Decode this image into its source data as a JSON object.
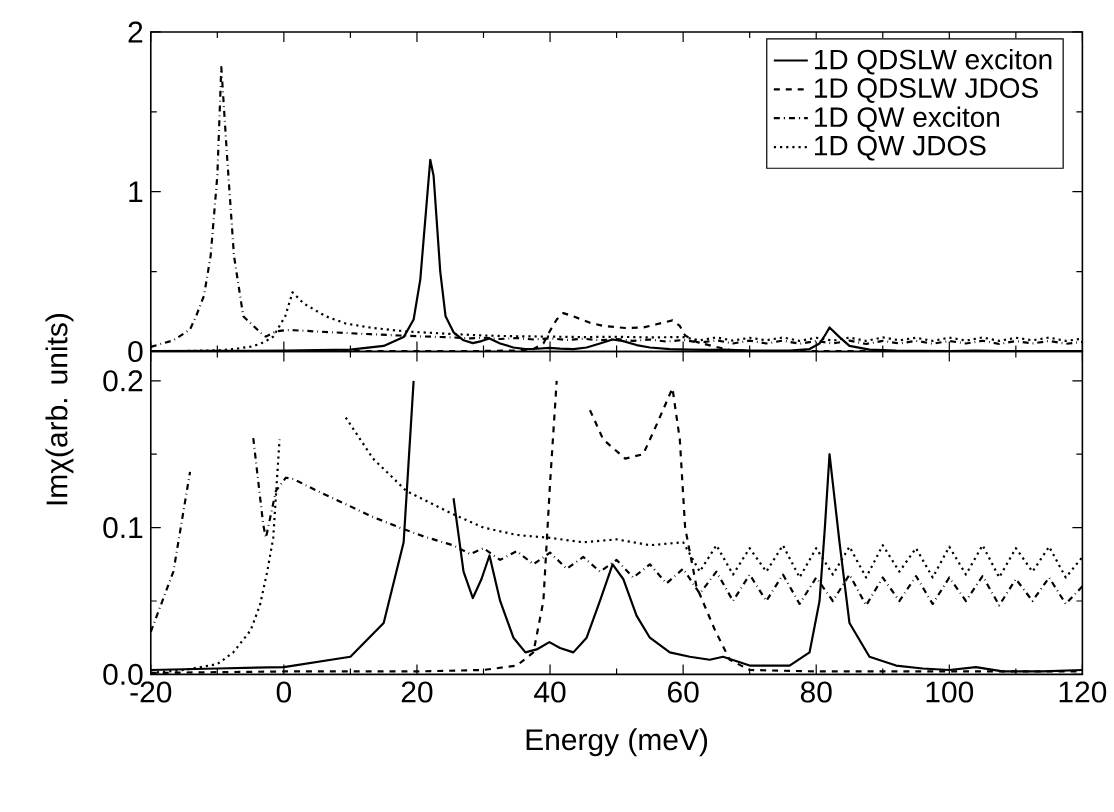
{
  "chart_data": [
    {
      "type": "line",
      "xlim": [
        -20,
        120
      ],
      "ylim": [
        0,
        2
      ],
      "xticks": [
        -20,
        0,
        20,
        40,
        60,
        80,
        100,
        120
      ],
      "yticks": [
        0,
        1,
        2
      ],
      "tick_labels": "y",
      "legend": "top right",
      "marker": "none",
      "series": [
        {
          "name": "1D QDSLW exciton",
          "color": "#000000",
          "line_style": "solid",
          "x": [
            -20,
            -10,
            0,
            10,
            15,
            18,
            19.5,
            20.5,
            21.5,
            22,
            22.5,
            23.5,
            24.3,
            25.5,
            27,
            28.4,
            29.7,
            30.9,
            32.5,
            34.5,
            36.3,
            38,
            39.9,
            41.5,
            43.5,
            45.5,
            47.5,
            49.4,
            51,
            53,
            55,
            58,
            61,
            64,
            66,
            70,
            76,
            79,
            80.5,
            81.3,
            82,
            83.5,
            85,
            88,
            92,
            96,
            100,
            104,
            108,
            114,
            120
          ],
          "values": [
            0.003,
            0.004,
            0.005,
            0.012,
            0.035,
            0.09,
            0.2,
            0.45,
            0.95,
            1.2,
            1.1,
            0.5,
            0.22,
            0.12,
            0.07,
            0.052,
            0.065,
            0.081,
            0.05,
            0.025,
            0.015,
            0.017,
            0.022,
            0.018,
            0.015,
            0.025,
            0.05,
            0.075,
            0.065,
            0.04,
            0.025,
            0.015,
            0.012,
            0.01,
            0.012,
            0.006,
            0.006,
            0.015,
            0.05,
            0.1,
            0.15,
            0.09,
            0.035,
            0.012,
            0.006,
            0.004,
            0.003,
            0.005,
            0.002,
            0.002,
            0.003
          ]
        },
        {
          "name": "1D QDSLW JDOS",
          "color": "#000000",
          "line_style": "dashed",
          "x": [
            -20,
            0,
            20,
            30,
            35,
            37.5,
            39,
            40,
            41,
            42,
            43.5,
            46,
            48,
            51.3,
            54,
            56,
            58.4,
            59.5,
            60.3,
            62,
            64.8,
            67,
            70,
            80,
            100,
            120
          ],
          "values": [
            0.001,
            0.002,
            0.002,
            0.003,
            0.006,
            0.015,
            0.05,
            0.13,
            0.2,
            0.24,
            0.22,
            0.18,
            0.16,
            0.147,
            0.15,
            0.17,
            0.195,
            0.16,
            0.1,
            0.06,
            0.03,
            0.01,
            0.003,
            0.002,
            0.002,
            0.002
          ]
        },
        {
          "name": "1D QW exciton",
          "color": "#000000",
          "line_style": "dashdot",
          "x": [
            -20,
            -16.6,
            -14.1,
            -13.2,
            -12,
            -11,
            -10,
            -9.4,
            -8.5,
            -7.5,
            -6.1,
            -4.6,
            -3.1,
            -2.7,
            -1.2,
            0.3,
            1.5,
            5,
            9.3,
            13,
            17.4,
            21,
            25.4,
            28,
            30,
            32.5,
            35,
            37.5,
            40,
            42.5,
            45,
            47.5,
            50,
            52.5,
            55,
            57.5,
            60,
            62.5,
            65,
            67.5,
            70,
            72.5,
            75,
            77.5,
            80,
            82.5,
            85,
            87.5,
            90,
            92.5,
            95,
            97.5,
            100,
            102.5,
            105,
            107.5,
            110,
            112.5,
            115,
            117.5,
            120
          ],
          "values": [
            0.029,
            0.07,
            0.138,
            0.22,
            0.35,
            0.6,
            1.1,
            1.78,
            1.2,
            0.6,
            0.22,
            0.161,
            0.102,
            0.093,
            0.125,
            0.134,
            0.133,
            0.125,
            0.116,
            0.108,
            0.1,
            0.094,
            0.088,
            0.082,
            0.086,
            0.078,
            0.084,
            0.075,
            0.083,
            0.072,
            0.08,
            0.07,
            0.078,
            0.066,
            0.075,
            0.062,
            0.072,
            0.055,
            0.07,
            0.05,
            0.068,
            0.05,
            0.068,
            0.048,
            0.066,
            0.05,
            0.068,
            0.047,
            0.066,
            0.05,
            0.067,
            0.048,
            0.066,
            0.05,
            0.067,
            0.047,
            0.065,
            0.05,
            0.066,
            0.048,
            0.06
          ]
        },
        {
          "name": "1D QW JDOS",
          "color": "#000000",
          "line_style": "dotted",
          "x": [
            -20,
            -15,
            -10,
            -7.6,
            -5,
            -3.6,
            -2.5,
            -1.6,
            -0.65,
            0.2,
            1.3,
            3,
            6.3,
            9.3,
            13.4,
            18.4,
            25,
            30,
            35,
            40,
            45,
            50,
            55,
            60,
            62.5,
            65,
            67.5,
            70,
            72.5,
            75,
            77.5,
            80,
            82.5,
            85,
            87.5,
            90,
            92.5,
            95,
            97.5,
            100,
            102.5,
            105,
            107.5,
            110,
            112.5,
            115,
            117.5,
            120
          ],
          "values": [
            0.001,
            0.003,
            0.007,
            0.015,
            0.03,
            0.047,
            0.07,
            0.093,
            0.16,
            0.22,
            0.37,
            0.3,
            0.22,
            0.175,
            0.147,
            0.125,
            0.11,
            0.1,
            0.095,
            0.093,
            0.09,
            0.092,
            0.088,
            0.09,
            0.07,
            0.088,
            0.068,
            0.086,
            0.07,
            0.088,
            0.066,
            0.086,
            0.068,
            0.087,
            0.066,
            0.088,
            0.07,
            0.086,
            0.066,
            0.087,
            0.068,
            0.088,
            0.066,
            0.086,
            0.07,
            0.087,
            0.066,
            0.08
          ]
        }
      ]
    },
    {
      "type": "line",
      "xlabel": "Energy (meV)",
      "ylabel": "Imχ(arb. units)",
      "xlim": [
        -20,
        120
      ],
      "ylim": [
        0,
        0.22
      ],
      "xticks": [
        -20,
        0,
        20,
        40,
        60,
        80,
        100,
        120
      ],
      "yticks": [
        {
          "value": 0,
          "label": "0.0"
        },
        {
          "value": 0.1,
          "label": "0.1"
        },
        {
          "value": 0.2,
          "label": "0.2"
        }
      ],
      "marker": "none",
      "series": [
        {
          "color": "#000000",
          "line_style": "solid",
          "x": [
            -20,
            -10,
            0,
            10,
            15,
            18,
            19.5,
            20.5,
            21.5,
            22,
            22.5,
            23.5,
            24.3,
            25.5,
            27,
            28.4,
            29.7,
            30.9,
            32.5,
            34.5,
            36.3,
            38,
            39.9,
            41.5,
            43.5,
            45.5,
            47.5,
            49.4,
            51,
            53,
            55,
            58,
            61,
            64,
            66,
            70,
            76,
            79,
            80.5,
            81.3,
            82,
            83.5,
            85,
            88,
            92,
            96,
            100,
            104,
            108,
            114,
            120
          ],
          "values": [
            0.003,
            0.004,
            0.005,
            0.012,
            0.035,
            0.09,
            0.2,
            null,
            null,
            null,
            null,
            null,
            null,
            0.12,
            0.07,
            0.052,
            0.065,
            0.081,
            0.05,
            0.025,
            0.015,
            0.017,
            0.022,
            0.018,
            0.015,
            0.025,
            0.05,
            0.075,
            0.065,
            0.04,
            0.025,
            0.015,
            0.012,
            0.01,
            0.012,
            0.006,
            0.006,
            0.015,
            0.05,
            0.1,
            0.15,
            0.09,
            0.035,
            0.012,
            0.006,
            0.004,
            0.003,
            0.005,
            0.002,
            0.002,
            0.003
          ]
        },
        {
          "color": "#000000",
          "line_style": "dashed",
          "x": [
            -20,
            0,
            20,
            30,
            35,
            37.5,
            39,
            40,
            41,
            42,
            43.5,
            46,
            48,
            51.3,
            54,
            56,
            58.4,
            59.5,
            60.3,
            62,
            64.8,
            67,
            70,
            80,
            100,
            120
          ],
          "values": [
            0.001,
            0.002,
            0.002,
            0.003,
            0.006,
            0.015,
            0.05,
            0.13,
            0.2,
            null,
            null,
            0.18,
            0.16,
            0.147,
            0.15,
            0.17,
            0.195,
            0.16,
            0.1,
            0.06,
            0.03,
            0.01,
            0.003,
            0.002,
            0.002,
            0.002
          ]
        },
        {
          "color": "#000000",
          "line_style": "dashdot",
          "x": [
            -20,
            -16.6,
            -14.1,
            -13.2,
            -12,
            -11,
            -10,
            -9.4,
            -8.5,
            -7.5,
            -6.1,
            -4.6,
            -3.1,
            -2.7,
            -1.2,
            0.3,
            1.5,
            5,
            9.3,
            13,
            17.4,
            21,
            25.4,
            28,
            30,
            32.5,
            35,
            37.5,
            40,
            42.5,
            45,
            47.5,
            50,
            52.5,
            55,
            57.5,
            60,
            62.5,
            65,
            67.5,
            70,
            72.5,
            75,
            77.5,
            80,
            82.5,
            85,
            87.5,
            90,
            92.5,
            95,
            97.5,
            100,
            102.5,
            105,
            107.5,
            110,
            112.5,
            115,
            117.5,
            120
          ],
          "values": [
            0.029,
            0.07,
            0.138,
            null,
            null,
            null,
            null,
            null,
            null,
            null,
            null,
            0.161,
            0.102,
            0.093,
            0.125,
            0.134,
            0.133,
            0.125,
            0.116,
            0.108,
            0.1,
            0.094,
            0.088,
            0.082,
            0.086,
            0.078,
            0.084,
            0.075,
            0.083,
            0.072,
            0.08,
            0.07,
            0.078,
            0.066,
            0.075,
            0.062,
            0.072,
            0.055,
            0.07,
            0.05,
            0.068,
            0.05,
            0.068,
            0.048,
            0.066,
            0.05,
            0.068,
            0.047,
            0.066,
            0.05,
            0.067,
            0.048,
            0.066,
            0.05,
            0.067,
            0.047,
            0.065,
            0.05,
            0.066,
            0.048,
            0.06
          ]
        },
        {
          "color": "#000000",
          "line_style": "dotted",
          "x": [
            -20,
            -15,
            -10,
            -7.6,
            -5,
            -3.6,
            -2.5,
            -1.6,
            -0.65,
            0.2,
            1.3,
            3,
            6.3,
            9.3,
            13.4,
            18.4,
            25,
            30,
            35,
            40,
            45,
            50,
            55,
            60,
            62.5,
            65,
            67.5,
            70,
            72.5,
            75,
            77.5,
            80,
            82.5,
            85,
            87.5,
            90,
            92.5,
            95,
            97.5,
            100,
            102.5,
            105,
            107.5,
            110,
            112.5,
            115,
            117.5,
            120
          ],
          "values": [
            0.001,
            0.003,
            0.007,
            0.015,
            0.03,
            0.047,
            0.07,
            0.093,
            0.16,
            null,
            null,
            null,
            null,
            0.175,
            0.147,
            0.125,
            0.11,
            0.1,
            0.095,
            0.093,
            0.09,
            0.092,
            0.088,
            0.09,
            0.07,
            0.088,
            0.068,
            0.086,
            0.07,
            0.088,
            0.066,
            0.086,
            0.068,
            0.087,
            0.066,
            0.088,
            0.07,
            0.086,
            0.066,
            0.087,
            0.068,
            0.088,
            0.066,
            0.086,
            0.07,
            0.087,
            0.066,
            0.08
          ]
        }
      ]
    }
  ]
}
